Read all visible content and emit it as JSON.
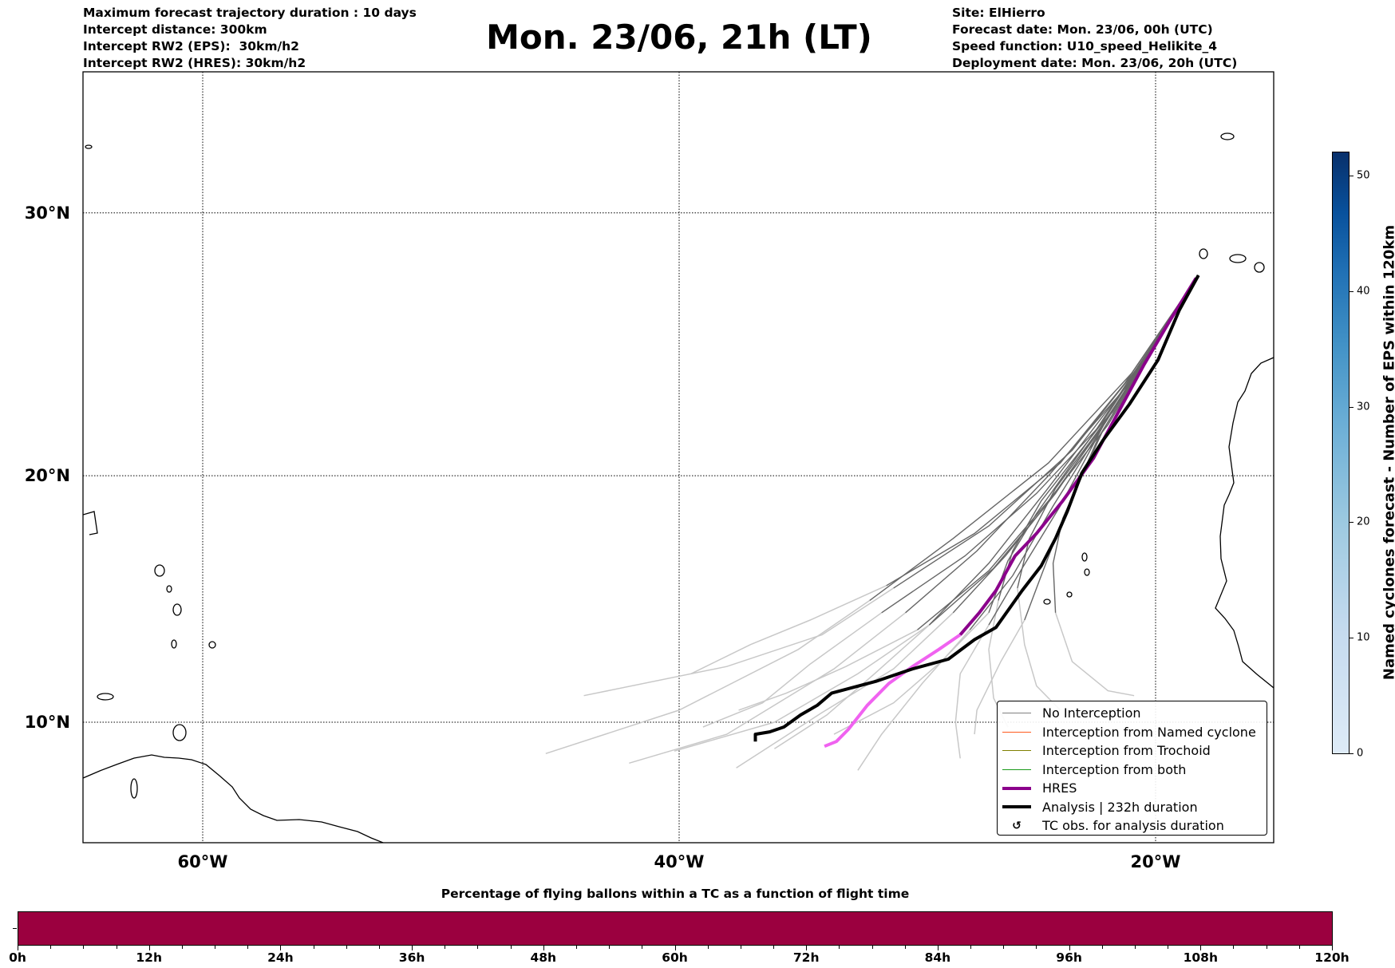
{
  "header": {
    "left": [
      "Maximum forecast trajectory duration : 10 days",
      "Intercept distance: 300km",
      "Intercept RW2 (EPS):  30km/h2",
      "Intercept RW2 (HRES): 30km/h2"
    ],
    "title": "Mon. 23/06, 21h (LT)",
    "right": [
      "Site: ElHierro",
      "Forecast date: Mon. 23/06, 00h (UTC)",
      "Speed function: U10_speed_Helikite_4",
      "Deployment date: Mon. 23/06, 20h (UTC)"
    ]
  },
  "chart_data": [
    {
      "type": "line",
      "title": "Mon. 23/06, 21h (LT)",
      "map": {
        "lon_range": [
          -65,
          -15
        ],
        "lat_range": [
          5,
          35
        ],
        "projection": "mercator"
      },
      "lon_ticks": [
        {
          "value": -60,
          "label": "60°W"
        },
        {
          "value": -40,
          "label": "40°W"
        },
        {
          "value": -20,
          "label": "20°W"
        }
      ],
      "lat_ticks": [
        {
          "value": 10,
          "label": "10°N"
        },
        {
          "value": 20,
          "label": "20°N"
        },
        {
          "value": 30,
          "label": "30°N"
        }
      ],
      "grid": true,
      "legend_placement": "lower-right",
      "legend": [
        {
          "label": "No Interception",
          "color": "#808080",
          "style": "thin"
        },
        {
          "label": "Interception from Named cyclone",
          "color": "#ff5a1f",
          "style": "thin"
        },
        {
          "label": "Interception from Trochoid",
          "color": "#808000",
          "style": "thin"
        },
        {
          "label": "Interception from both",
          "color": "#1a9a1a",
          "style": "thin"
        },
        {
          "label": "HRES",
          "color": "#8b008b",
          "style": "thick"
        },
        {
          "label": "Analysis | 232h duration",
          "color": "#000000",
          "style": "thick"
        },
        {
          "label": "TC obs. for analysis duration",
          "symbol": "↺"
        }
      ],
      "analysis": [
        [
          -18.2,
          27.7
        ],
        [
          -19.0,
          26.4
        ],
        [
          -19.9,
          24.5
        ],
        [
          -21.1,
          22.8
        ],
        [
          -22.2,
          21.4
        ],
        [
          -23.1,
          20.1
        ],
        [
          -23.7,
          18.6
        ],
        [
          -24.2,
          17.5
        ],
        [
          -24.8,
          16.4
        ],
        [
          -25.6,
          15.4
        ],
        [
          -26.7,
          13.9
        ],
        [
          -27.6,
          13.4
        ],
        [
          -28.7,
          12.6
        ],
        [
          -30.2,
          12.2
        ],
        [
          -31.7,
          11.7
        ],
        [
          -33.6,
          11.2
        ],
        [
          -34.2,
          10.7
        ],
        [
          -34.9,
          10.3
        ],
        [
          -35.6,
          9.8
        ],
        [
          -36.2,
          9.6
        ],
        [
          -36.8,
          9.5
        ],
        [
          -36.8,
          9.2
        ]
      ],
      "hres": [
        [
          -18.3,
          27.6
        ],
        [
          -19.4,
          26.0
        ],
        [
          -20.5,
          24.3
        ],
        [
          -21.5,
          22.6
        ],
        [
          -22.6,
          20.7
        ],
        [
          -23.9,
          19.0
        ],
        [
          -25.0,
          17.7
        ],
        [
          -25.9,
          16.8
        ],
        [
          -26.7,
          15.4
        ],
        [
          -27.4,
          14.5
        ],
        [
          -28.2,
          13.6
        ],
        [
          -29.1,
          13.0
        ],
        [
          -30.2,
          12.3
        ],
        [
          -31.2,
          11.6
        ],
        [
          -32.1,
          10.7
        ],
        [
          -32.9,
          9.7
        ],
        [
          -33.4,
          9.2
        ],
        [
          -33.9,
          9.0
        ]
      ],
      "hres_late_from_index": 10,
      "ensemble": [
        {
          "split": 4,
          "points": [
            [
              -18.2,
              27.7
            ],
            [
              -20.5,
              24.5
            ],
            [
              -23.5,
              21
            ],
            [
              -27,
              18
            ],
            [
              -31,
              15.5
            ],
            [
              -34,
              13.6
            ],
            [
              -38,
              12.3
            ],
            [
              -44,
              11.1
            ]
          ]
        },
        {
          "split": 4,
          "points": [
            [
              -18.2,
              27.7
            ],
            [
              -21,
              24
            ],
            [
              -24.5,
              20.5
            ],
            [
              -28.5,
              17.5
            ],
            [
              -32,
              15
            ],
            [
              -35,
              13
            ],
            [
              -40,
              10.5
            ],
            [
              -45.6,
              8.7
            ]
          ]
        },
        {
          "split": 4,
          "points": [
            [
              -18.2,
              27.7
            ],
            [
              -21.2,
              23.5
            ],
            [
              -24.5,
              20
            ],
            [
              -27.5,
              17
            ],
            [
              -30.5,
              14.5
            ],
            [
              -33.5,
              12.2
            ],
            [
              -38,
              9.5
            ],
            [
              -42.1,
              8.3
            ]
          ]
        },
        {
          "split": 4,
          "points": [
            [
              -18.2,
              27.7
            ],
            [
              -21.5,
              23.2
            ],
            [
              -24.6,
              19.4
            ],
            [
              -27,
              16.5
            ],
            [
              -29.5,
              14
            ],
            [
              -32.5,
              12
            ],
            [
              -36,
              10
            ],
            [
              -40.2,
              8.8
            ]
          ]
        },
        {
          "split": 4,
          "points": [
            [
              -18.2,
              27.7
            ],
            [
              -21.5,
              23
            ],
            [
              -24.2,
              19.3
            ],
            [
              -26.3,
              16.8
            ],
            [
              -28.5,
              14.5
            ],
            [
              -31,
              12.2
            ],
            [
              -34,
              10.4
            ],
            [
              -37.6,
              8.1
            ]
          ]
        },
        {
          "split": 4,
          "points": [
            [
              -18.2,
              27.7
            ],
            [
              -21.7,
              22.7
            ],
            [
              -24.3,
              18.8
            ],
            [
              -26,
              16
            ],
            [
              -27.8,
              13.8
            ],
            [
              -29.8,
              11.6
            ],
            [
              -31.5,
              9.5
            ],
            [
              -32.5,
              8.0
            ]
          ]
        },
        {
          "split": 4,
          "points": [
            [
              -18.2,
              27.7
            ],
            [
              -22,
              22.3
            ],
            [
              -24,
              18.8
            ],
            [
              -25.6,
              16.3
            ],
            [
              -27,
              14
            ],
            [
              -28.2,
              12
            ],
            [
              -28.4,
              10
            ],
            [
              -28.2,
              8.5
            ]
          ]
        },
        {
          "split": 4,
          "points": [
            [
              -18.2,
              27.7
            ],
            [
              -22.2,
              21.8
            ],
            [
              -23.8,
              18.5
            ],
            [
              -24.8,
              16
            ],
            [
              -25.5,
              14.2
            ],
            [
              -26.5,
              12.5
            ],
            [
              -27.5,
              10.5
            ],
            [
              -27.6,
              9.5
            ]
          ]
        },
        {
          "split": 4,
          "points": [
            [
              -18.2,
              27.7
            ],
            [
              -22.4,
              21.5
            ],
            [
              -23.9,
              18.3
            ],
            [
              -24.3,
              16.5
            ],
            [
              -24.2,
              14.5
            ],
            [
              -23.5,
              12.5
            ],
            [
              -22,
              11.3
            ],
            [
              -20.9,
              11.1
            ]
          ]
        },
        {
          "split": 4,
          "points": [
            [
              -18.2,
              27.7
            ],
            [
              -22,
              22
            ],
            [
              -24.5,
              19
            ],
            [
              -27,
              16.2
            ],
            [
              -30,
              13.8
            ],
            [
              -33,
              12.3
            ],
            [
              -35.5,
              11.2
            ],
            [
              -37.5,
              10.5
            ]
          ]
        },
        {
          "split": 4,
          "points": [
            [
              -18.2,
              27.7
            ],
            [
              -21.8,
              22.5
            ],
            [
              -25,
              19.3
            ],
            [
              -28,
              16.8
            ],
            [
              -31.5,
              14.5
            ],
            [
              -34.5,
              12.4
            ],
            [
              -36.5,
              10.8
            ],
            [
              -39,
              9.8
            ]
          ]
        },
        {
          "split": 4,
          "points": [
            [
              -18.2,
              27.7
            ],
            [
              -22.5,
              21.8
            ],
            [
              -25,
              18.5
            ],
            [
              -26.2,
              16.6
            ],
            [
              -27,
              14.5
            ],
            [
              -29,
              12.5
            ],
            [
              -31,
              10.8
            ],
            [
              -33.5,
              9.5
            ]
          ]
        },
        {
          "split": 4,
          "points": [
            [
              -18.2,
              27.7
            ],
            [
              -22.3,
              22
            ],
            [
              -24.8,
              19
            ],
            [
              -26,
              17
            ],
            [
              -26.6,
              15
            ],
            [
              -27,
              13
            ],
            [
              -26.8,
              11
            ],
            [
              -26.2,
              9.8
            ]
          ]
        },
        {
          "split": 4,
          "points": [
            [
              -18.2,
              27.7
            ],
            [
              -21.9,
              22.4
            ],
            [
              -24.2,
              19.5
            ],
            [
              -25.3,
              17.5
            ],
            [
              -25.8,
              15.5
            ],
            [
              -25.5,
              13.2
            ],
            [
              -25,
              11.5
            ],
            [
              -24,
              10.5
            ]
          ]
        },
        {
          "split": 4,
          "points": [
            [
              -18.2,
              27.7
            ],
            [
              -21.3,
              23.6
            ],
            [
              -24,
              20.5
            ],
            [
              -27.6,
              17.7
            ],
            [
              -31.3,
              15.6
            ],
            [
              -34.5,
              14.2
            ],
            [
              -37,
              13.2
            ],
            [
              -39.5,
              12
            ]
          ]
        },
        {
          "split": 4,
          "points": [
            [
              -18.2,
              27.7
            ],
            [
              -22.1,
              22.1
            ],
            [
              -24.7,
              18.7
            ],
            [
              -26.8,
              16.3
            ],
            [
              -29.5,
              14
            ],
            [
              -31.8,
              12
            ],
            [
              -33.8,
              10.3
            ],
            [
              -36,
              8.9
            ]
          ]
        }
      ]
    },
    {
      "type": "heatmap",
      "title": "Named cyclones forecast - Number of EPS within 120km",
      "colorbar_range": [
        0,
        52
      ],
      "ticks": [
        0,
        10,
        20,
        30,
        40,
        50
      ],
      "colormap": [
        "#deebf7",
        "#08306b"
      ]
    },
    {
      "type": "bar",
      "title": "Percentage of flying ballons within a TC as a function of flight time",
      "x_ticks": [
        "0h",
        "12h",
        "24h",
        "36h",
        "48h",
        "60h",
        "72h",
        "84h",
        "96h",
        "108h",
        "120h"
      ],
      "xlim": [
        0,
        120
      ],
      "minor_tick_step": 3,
      "fill_color": "#9b003f",
      "fill_fraction": 1.0
    }
  ]
}
